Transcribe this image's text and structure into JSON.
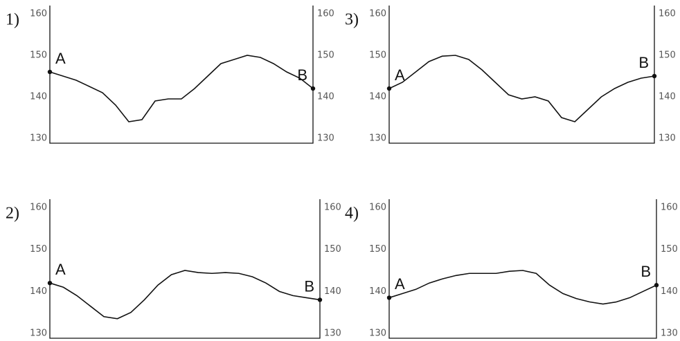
{
  "chart_data": [
    {
      "type": "line",
      "label": "1)",
      "start_label": "A",
      "end_label": "B",
      "color": "#111111",
      "ylim": [
        130,
        160
      ],
      "yticks": [
        130,
        140,
        150,
        160
      ],
      "y2lim": [
        130,
        160
      ],
      "y2ticks": [
        130,
        140,
        150,
        160
      ],
      "values": [
        146,
        145,
        144,
        142.5,
        141,
        138,
        134,
        134.5,
        139,
        139.5,
        139.5,
        142,
        145,
        148,
        149,
        150,
        149.5,
        148,
        146,
        144.5,
        142
      ]
    },
    {
      "type": "line",
      "label": "2)",
      "start_label": "A",
      "end_label": "B",
      "color": "#111111",
      "ylim": [
        130,
        160
      ],
      "yticks": [
        130,
        140,
        150,
        160
      ],
      "y2lim": [
        130,
        160
      ],
      "y2ticks": [
        130,
        140,
        150,
        160
      ],
      "values": [
        142,
        141,
        139,
        136.5,
        134,
        133.5,
        135,
        138,
        141.5,
        144,
        145,
        144.5,
        144.3,
        144.5,
        144.3,
        143.5,
        142,
        140,
        139,
        138.5,
        138
      ]
    },
    {
      "type": "line",
      "label": "3)",
      "start_label": "A",
      "end_label": "B",
      "color": "#111111",
      "ylim": [
        130,
        160
      ],
      "yticks": [
        130,
        140,
        150,
        160
      ],
      "y2lim": [
        130,
        160
      ],
      "y2ticks": [
        130,
        140,
        150,
        160
      ],
      "values": [
        142,
        143.5,
        146,
        148.5,
        149.8,
        150,
        149,
        146.5,
        143.5,
        140.5,
        139.5,
        140,
        139,
        135,
        134,
        137,
        140,
        142,
        143.5,
        144.5,
        145
      ]
    },
    {
      "type": "line",
      "label": "4)",
      "start_label": "A",
      "end_label": "B",
      "color": "#111111",
      "ylim": [
        130,
        160
      ],
      "yticks": [
        130,
        140,
        150,
        160
      ],
      "y2lim": [
        130,
        160
      ],
      "y2ticks": [
        130,
        140,
        150,
        160
      ],
      "values": [
        138.5,
        139.5,
        140.5,
        142,
        143,
        143.8,
        144.3,
        144.3,
        144.3,
        144.8,
        145,
        144.3,
        141.5,
        139.5,
        138.3,
        137.5,
        137,
        137.5,
        138.5,
        140,
        141.5
      ]
    }
  ]
}
